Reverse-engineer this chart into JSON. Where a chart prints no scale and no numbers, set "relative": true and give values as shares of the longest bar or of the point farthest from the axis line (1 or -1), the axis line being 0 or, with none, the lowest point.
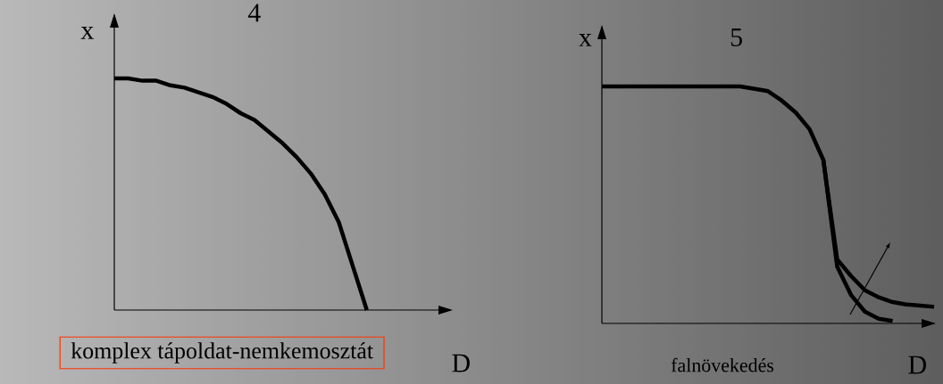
{
  "chart_data": [
    {
      "type": "line",
      "title": "4",
      "xlabel": "D",
      "ylabel": "x",
      "relative": true,
      "annotations": [
        "komplex tápoldat-nemkemosztát"
      ],
      "categories": [
        null,
        null,
        null,
        null,
        null,
        null,
        null,
        null,
        null,
        null,
        null,
        null,
        null,
        null,
        null,
        null,
        null,
        null,
        null,
        null,
        null,
        null,
        null,
        null,
        null
      ],
      "series": [
        {
          "color": "#000000",
          "values": [
            1,
            1.0,
            0.99,
            0.99,
            0.97,
            0.96,
            0.94,
            0.92,
            0.89,
            0.85,
            0.82,
            0.77,
            0.72,
            0.66,
            0.59,
            0.5,
            0.38,
            0.19,
            0,
            null,
            null,
            null,
            null,
            null,
            null
          ]
        }
      ]
    },
    {
      "type": "line",
      "title": "5",
      "xlabel": "D",
      "ylabel": "x",
      "relative": true,
      "annotations": [
        "falnövekedés"
      ],
      "categories": [
        null,
        null,
        null,
        null,
        null,
        null,
        null,
        null,
        null,
        null,
        null,
        null,
        null,
        null,
        null,
        null,
        null,
        null,
        null,
        null,
        null,
        null,
        null,
        null,
        null
      ],
      "series": [
        {
          "color": "#000000",
          "values": [
            1,
            1,
            1,
            1,
            1,
            1,
            1,
            1,
            1,
            1,
            1,
            0.99,
            0.98,
            0.94,
            0.89,
            0.82,
            0.69,
            0.24,
            0.12,
            0.05,
            0.02,
            0.01,
            null,
            null,
            null
          ]
        },
        {
          "color": "#000000",
          "values": [
            null,
            null,
            null,
            null,
            null,
            null,
            null,
            null,
            null,
            null,
            null,
            null,
            null,
            null,
            null,
            null,
            0.69,
            0.27,
            0.2,
            0.14,
            0.11,
            0.09,
            0.08,
            0.075,
            0.07
          ]
        }
      ]
    }
  ]
}
